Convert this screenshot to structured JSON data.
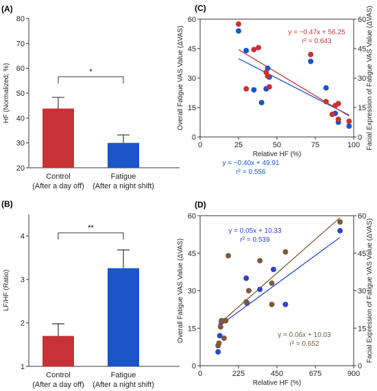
{
  "chart_data": [
    {
      "panel": "(A)",
      "type": "bar",
      "ylabel": "HF (Normalized; %)",
      "ylim": [
        20,
        80
      ],
      "yticks": [
        20,
        30,
        40,
        50,
        60,
        70,
        80
      ],
      "categories": [
        "Control\n(After a day off)",
        "Fatigue\n(After a night shift)"
      ],
      "values": [
        43.8,
        30.0
      ],
      "errors": [
        4.5,
        3.2
      ],
      "colors": [
        "#c83236",
        "#1a56c9"
      ],
      "significance": "*"
    },
    {
      "panel": "(B)",
      "type": "bar",
      "ylabel": "LF/HF (Ratio)",
      "ylim": [
        1,
        4.5
      ],
      "yticks": [
        1,
        2,
        3,
        4
      ],
      "categories": [
        "Control\n(After a day off)",
        "Fatigue\n(After a night shift)"
      ],
      "values": [
        1.7,
        3.26
      ],
      "errors": [
        0.28,
        0.42
      ],
      "colors": [
        "#c83236",
        "#1a56c9"
      ],
      "significance": "**"
    },
    {
      "panel": "(C)",
      "type": "scatter",
      "xlabel": "Relative HF (%)",
      "ylabel_left": "Overall Fatigue VAS Value (ΔVAS)",
      "ylabel_right": "Facial Expression of Fatigue VAS Value (ΔVAS)",
      "xlim": [
        0,
        100
      ],
      "ylim": [
        0,
        60
      ],
      "xticks": [
        0,
        25,
        50,
        75,
        100
      ],
      "yticks": [
        0,
        15,
        30,
        45,
        60
      ],
      "series": [
        {
          "color": "#1a56c9",
          "points": [
            [
              25,
              54
            ],
            [
              30,
              44
            ],
            [
              35,
              24
            ],
            [
              40,
              17.5
            ],
            [
              43,
              24.5
            ],
            [
              44,
              35
            ],
            [
              45,
              30.5
            ],
            [
              72,
              38.5
            ],
            [
              82,
              25
            ],
            [
              88,
              12
            ],
            [
              90,
              7.5
            ],
            [
              97,
              5.5
            ]
          ],
          "fit": {
            "slope": -0.4,
            "intercept": 49.91
          },
          "equation": "y = −0.40x + 49.91",
          "r2": "r² = 0.556"
        },
        {
          "color": "#c83236",
          "points": [
            [
              25,
              57.5
            ],
            [
              30,
              24.5
            ],
            [
              35,
              44.5
            ],
            [
              38,
              45.5
            ],
            [
              43,
              33
            ],
            [
              44,
              31
            ],
            [
              45,
              25.5
            ],
            [
              72,
              42
            ],
            [
              82,
              18
            ],
            [
              86,
              11.5
            ],
            [
              88,
              16
            ],
            [
              90,
              17
            ],
            [
              90,
              9
            ],
            [
              97,
              8
            ]
          ],
          "fit": {
            "slope": -0.47,
            "intercept": 56.25
          },
          "equation": "y = −0.47x + 56.25",
          "r2": "r² = 0.643"
        }
      ]
    },
    {
      "panel": "(D)",
      "type": "scatter",
      "xlabel": "Relative HF (%)",
      "ylabel_left": "Overall Fatigue VAS Value (ΔVAS)",
      "ylabel_right": "Facial Expression of Fatigue VAS Value (ΔVAS)",
      "xlim": [
        0,
        900
      ],
      "ylim": [
        0,
        60
      ],
      "xticks": [
        0,
        225,
        450,
        675,
        900
      ],
      "yticks": [
        0,
        15,
        30,
        45,
        60
      ],
      "series": [
        {
          "color": "#2e46c8",
          "points": [
            [
              105,
              5.5
            ],
            [
              115,
              12
            ],
            [
              125,
              17.5
            ],
            [
              145,
              18
            ],
            [
              270,
              35
            ],
            [
              275,
              25
            ],
            [
              350,
              30.5
            ],
            [
              430,
              38.5
            ],
            [
              500,
              24.5
            ],
            [
              820,
              54
            ]
          ],
          "fit": {
            "slope": 0.05,
            "intercept": 10.33
          },
          "equation": "y = 0.05x + 10.33",
          "r2": "r² = 0.539"
        },
        {
          "color": "#7d5a3c",
          "points": [
            [
              105,
              8
            ],
            [
              110,
              9
            ],
            [
              120,
              15.5
            ],
            [
              125,
              18
            ],
            [
              140,
              11
            ],
            [
              150,
              18
            ],
            [
              165,
              44
            ],
            [
              270,
              25.5
            ],
            [
              285,
              30
            ],
            [
              350,
              42
            ],
            [
              420,
              33
            ],
            [
              420,
              24.5
            ],
            [
              500,
              45.5
            ],
            [
              820,
              57.5
            ]
          ],
          "fit": {
            "slope": 0.06,
            "intercept": 10.03
          },
          "equation": "y = 0.06x + 10.03",
          "r2": "r² = 0.652"
        }
      ]
    }
  ]
}
